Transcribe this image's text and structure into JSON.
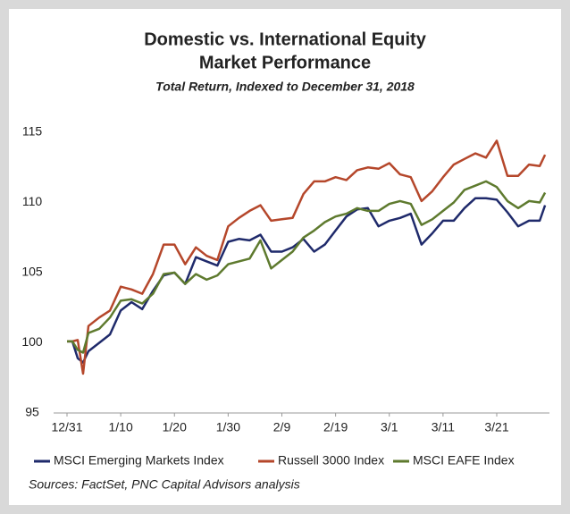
{
  "chart_data": {
    "type": "line",
    "title": [
      "Domestic vs. International Equity",
      "Market Performance"
    ],
    "subtitle": "Total Return, Indexed to December 31, 2018",
    "source": "Sources: FactSet, PNC Capital Advisors analysis",
    "x": [
      0,
      1,
      2,
      3,
      4,
      6,
      8,
      10,
      12,
      14,
      16,
      18,
      20,
      22,
      24,
      26,
      28,
      30,
      32,
      34,
      36,
      38,
      40,
      42,
      44,
      46,
      48,
      50,
      52,
      54,
      56,
      58,
      60,
      62,
      64,
      66,
      68,
      70,
      72,
      74,
      76,
      78,
      80,
      82,
      84,
      86,
      88,
      89
    ],
    "xlim": [
      0,
      89
    ],
    "xticks": [
      {
        "value": 0,
        "label": "12/31"
      },
      {
        "value": 10,
        "label": "1/10"
      },
      {
        "value": 20,
        "label": "1/20"
      },
      {
        "value": 30,
        "label": "1/30"
      },
      {
        "value": 40,
        "label": "2/9"
      },
      {
        "value": 50,
        "label": "2/19"
      },
      {
        "value": 60,
        "label": "3/1"
      },
      {
        "value": 70,
        "label": "3/11"
      },
      {
        "value": 80,
        "label": "3/21"
      }
    ],
    "ylim": [
      95,
      115
    ],
    "yticks": [
      95,
      100,
      105,
      110,
      115
    ],
    "series": [
      {
        "name": "MSCI Emerging Markets Index",
        "color": "#1f2a6b",
        "values": [
          100.1,
          100.1,
          98.9,
          98.6,
          99.4,
          100.0,
          100.6,
          102.3,
          102.9,
          102.4,
          103.7,
          104.8,
          105.0,
          104.2,
          106.1,
          105.8,
          105.5,
          107.2,
          107.4,
          107.3,
          107.7,
          106.5,
          106.5,
          106.8,
          107.4,
          106.5,
          107.0,
          108.0,
          109.0,
          109.5,
          109.6,
          108.3,
          108.7,
          108.9,
          109.2,
          107.0,
          107.8,
          108.7,
          108.7,
          109.6,
          110.3,
          110.3,
          110.2,
          109.3,
          108.3,
          108.7,
          108.7,
          109.8
        ]
      },
      {
        "name": "Russell 3000 Index",
        "color": "#b5472b",
        "values": [
          100.1,
          100.1,
          100.2,
          97.8,
          101.2,
          101.8,
          102.3,
          104.0,
          103.8,
          103.5,
          104.9,
          107.0,
          107.0,
          105.6,
          106.8,
          106.2,
          105.9,
          108.3,
          108.9,
          109.4,
          109.8,
          108.7,
          108.8,
          108.9,
          110.6,
          111.5,
          111.5,
          111.8,
          111.6,
          112.3,
          112.5,
          112.4,
          112.8,
          112.0,
          111.8,
          110.1,
          110.8,
          111.8,
          112.7,
          113.1,
          113.5,
          113.2,
          114.4,
          111.9,
          111.9,
          112.7,
          112.6,
          113.4
        ]
      },
      {
        "name": "MSCI EAFE Index",
        "color": "#5e7a2e",
        "values": [
          100.1,
          100.1,
          99.5,
          99.3,
          100.7,
          101.0,
          101.8,
          103.0,
          103.1,
          102.8,
          103.5,
          104.9,
          105.0,
          104.2,
          104.9,
          104.5,
          104.8,
          105.6,
          105.8,
          106.0,
          107.3,
          105.3,
          105.9,
          106.5,
          107.5,
          108.0,
          108.6,
          109.0,
          109.2,
          109.6,
          109.4,
          109.4,
          109.9,
          110.1,
          109.9,
          108.4,
          108.8,
          109.4,
          110.0,
          110.9,
          111.2,
          111.5,
          111.1,
          110.1,
          109.6,
          110.1,
          110.0,
          110.7
        ]
      }
    ],
    "legend": "bottom",
    "grid": false
  }
}
